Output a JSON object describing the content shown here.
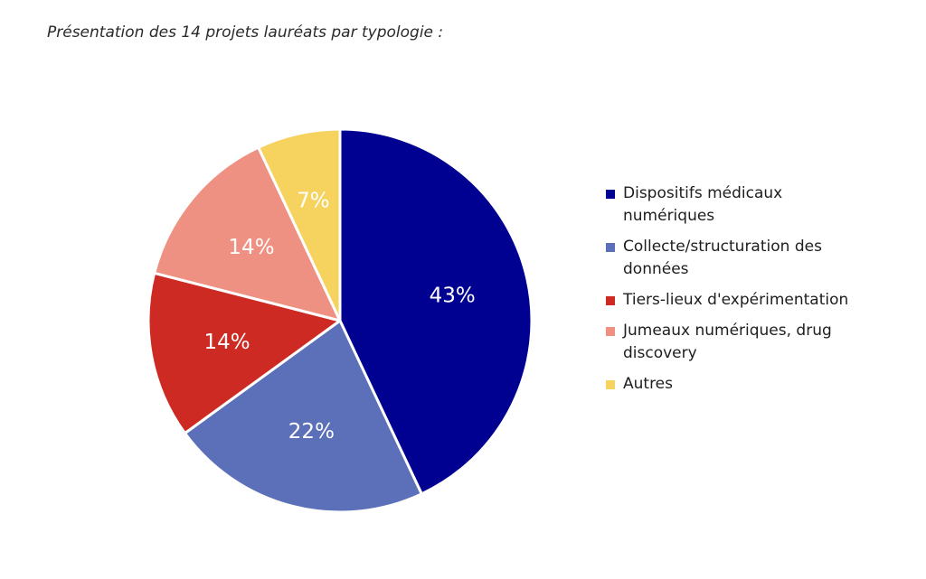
{
  "title": "Présentation des 14 projets lauréats par typologie :",
  "chart_data": {
    "type": "pie",
    "title": "Présentation des 14 projets lauréats par typologie :",
    "start_angle_deg": 0,
    "direction": "clockwise",
    "slices": [
      {
        "name": "Dispositifs médicaux numériques",
        "value": 43,
        "label": "43%",
        "color": "#000091"
      },
      {
        "name": "Collecte/structuration des données",
        "value": 22,
        "label": "22%",
        "color": "#5b70b9"
      },
      {
        "name": "Tiers-lieux d'expérimentation",
        "value": 14,
        "label": "14%",
        "color": "#ce2a24"
      },
      {
        "name": "Jumeaux numériques, drug discovery",
        "value": 14,
        "label": "14%",
        "color": "#ef9182"
      },
      {
        "name": "Autres",
        "value": 7,
        "label": "7%",
        "color": "#f6d35e"
      }
    ],
    "legend_position": "right"
  }
}
